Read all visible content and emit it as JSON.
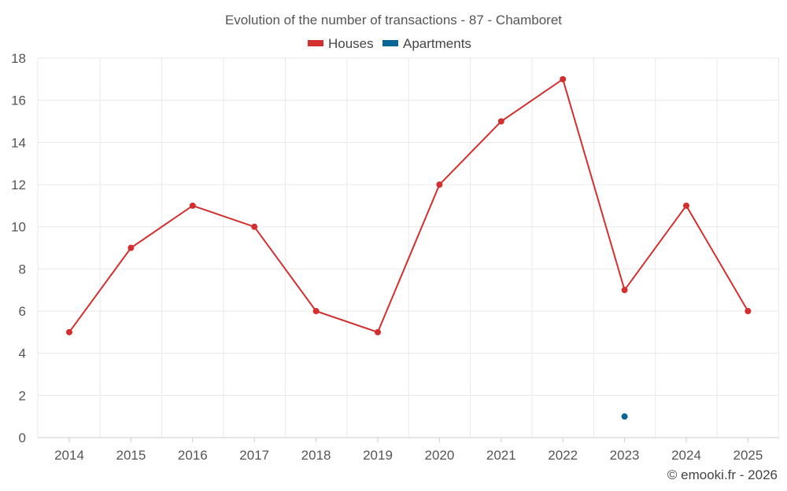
{
  "chart_data": {
    "type": "line",
    "title": "Evolution of the number of transactions - 87 - Chamboret",
    "categories": [
      "2014",
      "2015",
      "2016",
      "2017",
      "2018",
      "2019",
      "2020",
      "2021",
      "2022",
      "2023",
      "2024",
      "2025"
    ],
    "series": [
      {
        "name": "Houses",
        "color": "#d32f2f",
        "values": [
          5,
          9,
          11,
          10,
          6,
          5,
          12,
          15,
          17,
          7,
          11,
          6
        ]
      },
      {
        "name": "Apartments",
        "color": "#0a6496",
        "values": [
          null,
          null,
          null,
          null,
          null,
          null,
          null,
          null,
          null,
          1,
          null,
          null
        ]
      }
    ],
    "y_ticks": [
      "0",
      "2",
      "4",
      "6",
      "8",
      "10",
      "12",
      "14",
      "16",
      "18"
    ],
    "ylim": [
      0,
      18
    ],
    "grid": true,
    "legend_position": "top-center",
    "xlabel": "",
    "ylabel": ""
  },
  "credit": "© emooki.fr - 2026"
}
